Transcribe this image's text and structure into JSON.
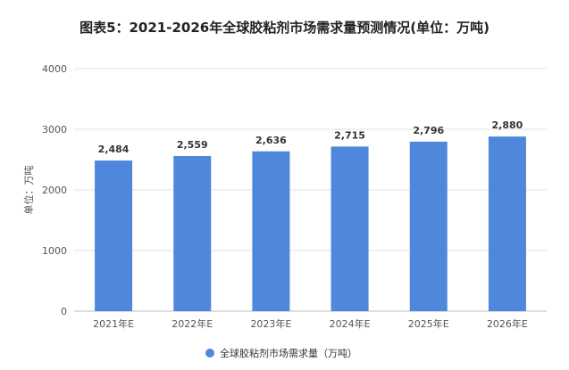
{
  "title": "图表5：2021-2026年全球胶粘剂市场需求量预测情况(单位：万吨)",
  "chart_data": {
    "type": "bar",
    "categories": [
      "2021年E",
      "2022年E",
      "2023年E",
      "2024年E",
      "2025年E",
      "2026年E"
    ],
    "series": [
      {
        "name": "全球胶粘剂市场需求量（万吨）",
        "values": [
          2484,
          2559,
          2636,
          2715,
          2796,
          2880
        ],
        "labels": [
          "2,484",
          "2,559",
          "2,636",
          "2,715",
          "2,796",
          "2,880"
        ],
        "color": "#4e87db"
      }
    ],
    "ylabel": "单位：万吨",
    "ylim": [
      0,
      4000
    ],
    "yticks": [
      0,
      1000,
      2000,
      3000,
      4000
    ],
    "grid": true,
    "legend_position": "bottom-center"
  }
}
